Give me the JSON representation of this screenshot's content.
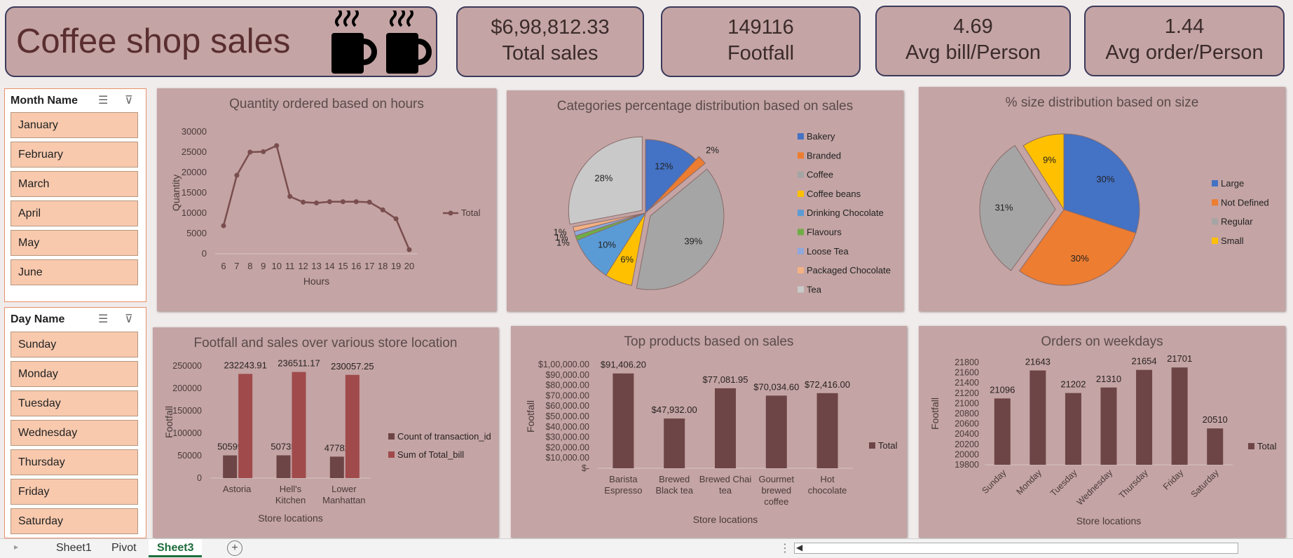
{
  "header": {
    "title": "Coffee shop sales",
    "icons": [
      "hot-coffee-mug-icon",
      "hot-coffee-mug-icon"
    ]
  },
  "kpis": [
    {
      "value": "$6,98,812.33",
      "label": "Total sales"
    },
    {
      "value": "149116",
      "label": "Footfall"
    },
    {
      "value": "4.69",
      "label": "Avg bill/Person"
    },
    {
      "value": "1.44",
      "label": "Avg order/Person"
    }
  ],
  "slicers": {
    "month": {
      "title": "Month Name",
      "items": [
        "January",
        "February",
        "March",
        "April",
        "May",
        "June"
      ]
    },
    "day": {
      "title": "Day Name",
      "items": [
        "Sunday",
        "Monday",
        "Tuesday",
        "Wednesday",
        "Thursday",
        "Friday",
        "Saturday"
      ]
    }
  },
  "tabs": [
    "Sheet1",
    "Pivot",
    "Sheet3"
  ],
  "active_tab": "Sheet3",
  "colors": {
    "bar": "#6e4546",
    "bar_red": "#a04a4b",
    "line": "#7a4e4f",
    "panel": "#c4a4a4"
  },
  "chart_data": [
    {
      "type": "line",
      "title": "Quantity ordered based on hours",
      "xlabel": "Hours",
      "ylabel": "Quantity",
      "x": [
        6,
        7,
        8,
        9,
        10,
        11,
        12,
        13,
        14,
        15,
        16,
        17,
        18,
        19,
        20
      ],
      "series": [
        {
          "name": "Total",
          "values": [
            6900,
            19300,
            25000,
            25100,
            26600,
            14100,
            12700,
            12500,
            12800,
            12800,
            12800,
            12700,
            10800,
            8600,
            1000
          ]
        }
      ],
      "ylim": [
        0,
        30000
      ],
      "yticks": [
        0,
        5000,
        10000,
        15000,
        20000,
        25000,
        30000
      ],
      "legend": "right"
    },
    {
      "type": "pie",
      "title": "Categories percentage distribution based on sales",
      "labels": [
        "Bakery",
        "Branded",
        "Coffee",
        "Coffee beans",
        "Drinking Chocolate",
        "Flavours",
        "Loose Tea",
        "Packaged Chocolate",
        "Tea"
      ],
      "values": [
        12,
        2,
        39,
        6,
        10,
        1,
        1,
        1,
        28
      ],
      "value_labels": [
        "12%",
        "2%",
        "39%",
        "6%",
        "10%",
        "1%",
        "1%",
        "1%",
        "28%"
      ],
      "colors": [
        "#4472c4",
        "#ed7d31",
        "#a5a5a5",
        "#ffc000",
        "#5b9bd5",
        "#70ad47",
        "#8fa8dc",
        "#f4b183",
        "#c9c9c9"
      ],
      "legend": "right"
    },
    {
      "type": "pie",
      "title": "% size distribution based on size",
      "labels": [
        "Large",
        "Not Defined",
        "Regular",
        "Small"
      ],
      "values": [
        30,
        30,
        31,
        9
      ],
      "value_labels": [
        "30%",
        "30%",
        "31%",
        "9%"
      ],
      "colors": [
        "#4472c4",
        "#ed7d31",
        "#a5a5a5",
        "#ffc000"
      ],
      "legend": "right"
    },
    {
      "type": "bar",
      "title": "Footfall and sales over various store location",
      "xlabel": "Store locations",
      "ylabel": "Footfall",
      "categories": [
        "Astoria",
        "Hell's Kitchen",
        "Lower Manhattan"
      ],
      "series": [
        {
          "name": "Count of transaction_id",
          "values": [
            50599,
            50735,
            47782
          ],
          "labels": [
            "50599",
            "50735",
            "47782"
          ]
        },
        {
          "name": "Sum of Total_bill",
          "values": [
            232243.91,
            236511.17,
            230057.25
          ],
          "labels": [
            "232243.91",
            "236511.17",
            "230057.25"
          ]
        }
      ],
      "ylim": [
        0,
        250000
      ],
      "yticks": [
        0,
        50000,
        100000,
        150000,
        200000,
        250000
      ],
      "legend": "right"
    },
    {
      "type": "bar",
      "title": "Top products based on sales",
      "xlabel": "Store locations",
      "ylabel": "Footfall",
      "categories": [
        "Barista Espresso",
        "Brewed Black tea",
        "Brewed Chai tea",
        "Gourmet brewed coffee",
        "Hot chocolate"
      ],
      "series": [
        {
          "name": "Total",
          "values": [
            91406.2,
            47932,
            77081.95,
            70034.6,
            72416
          ],
          "labels": [
            "$91,406.20",
            "$47,932.00",
            "$77,081.95",
            "$70,034.60",
            "$72,416.00"
          ]
        }
      ],
      "ylim": [
        0,
        100000
      ],
      "yticks": [
        "$-",
        "$10,000.00",
        "$20,000.00",
        "$30,000.00",
        "$40,000.00",
        "$50,000.00",
        "$60,000.00",
        "$70,000.00",
        "$80,000.00",
        "$90,000.00",
        "$1,00,000.00"
      ],
      "legend": "right"
    },
    {
      "type": "bar",
      "title": "Orders on weekdays",
      "xlabel": "Store locations",
      "ylabel": "Footfall",
      "categories": [
        "Sunday",
        "Monday",
        "Tuesday",
        "Wednesday",
        "Thursday",
        "Friday",
        "Saturday"
      ],
      "series": [
        {
          "name": "Total",
          "values": [
            21096,
            21643,
            21202,
            21310,
            21654,
            21701,
            20510
          ],
          "labels": [
            "21096",
            "21643",
            "21202",
            "21310",
            "21654",
            "21701",
            "20510"
          ]
        }
      ],
      "ylim": [
        19800,
        21800
      ],
      "yticks": [
        19800,
        20000,
        20200,
        20400,
        20600,
        20800,
        21000,
        21200,
        21400,
        21600,
        21800
      ],
      "legend": "right"
    }
  ]
}
